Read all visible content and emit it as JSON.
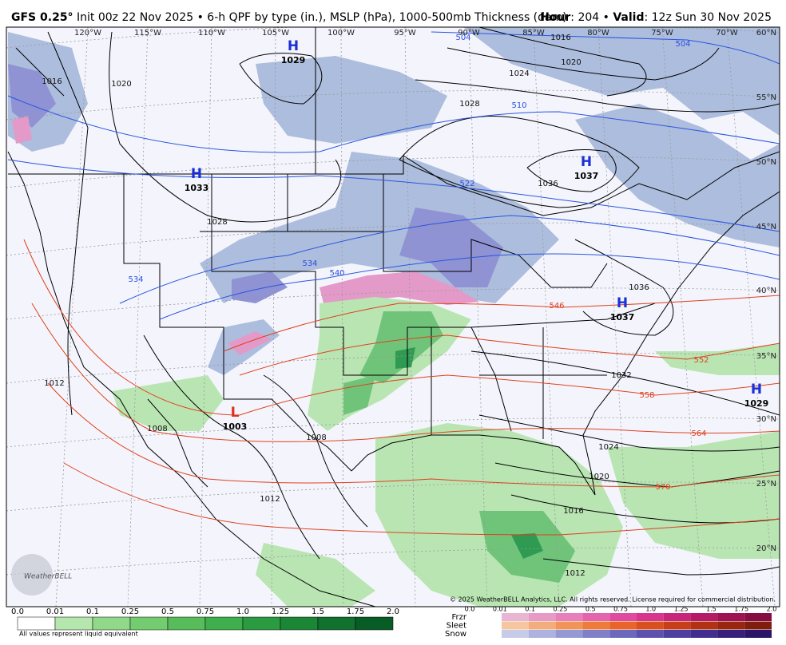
{
  "header": {
    "model": "GFS 0.25°",
    "title": " Init 00z 22 Nov 2025 • 6-h QPF by type (in.), MSLP (hPa), 1000-500mb Thickness (dam)",
    "hour_label": "Hour",
    "hour_value": ": 204 • ",
    "valid_label": "Valid",
    "valid_value": ": 12z Sun 30 Nov 2025"
  },
  "longitudes": [
    "120°W",
    "115°W",
    "110°W",
    "105°W",
    "100°W",
    "95°W",
    "90°W",
    "85°W",
    "80°W",
    "75°W",
    "70°W"
  ],
  "latitudes": [
    "60°N",
    "55°N",
    "50°N",
    "45°N",
    "40°N",
    "35°N",
    "30°N",
    "25°N",
    "20°N"
  ],
  "pressure_centers": [
    {
      "type": "H",
      "value": "1029"
    },
    {
      "type": "H",
      "value": "1033"
    },
    {
      "type": "H",
      "value": "1037"
    },
    {
      "type": "H",
      "value": "1037"
    },
    {
      "type": "H",
      "value": "1029"
    },
    {
      "type": "L",
      "value": "1003"
    }
  ],
  "isobar_labels": [
    "1016",
    "1020",
    "1024",
    "1028",
    "1036",
    "1032",
    "1028",
    "1020",
    "1016",
    "1012",
    "1008",
    "1008",
    "1024",
    "1020",
    "1016",
    "1012",
    "1036",
    "1012"
  ],
  "thickness_labels_cold": [
    "504",
    "504",
    "510",
    "522",
    "534",
    "540",
    "534"
  ],
  "thickness_labels_warm": [
    "546",
    "552",
    "558",
    "564",
    "570"
  ],
  "legend": {
    "qpf_levels": [
      "0.0",
      "0.01",
      "0.1",
      "0.25",
      "0.5",
      "0.75",
      "1.0",
      "1.25",
      "1.5",
      "1.75",
      "2.0"
    ],
    "note": "All values represent liquid equivalent",
    "ptypes": [
      "Frzr",
      "Sleet",
      "Snow"
    ],
    "ptype_levels": [
      "0.0",
      "0.01",
      "0.1",
      "0.25",
      "0.5",
      "0.75",
      "1.0",
      "1.25",
      "1.5",
      "1.75",
      "2.0"
    ]
  },
  "logo": "WeatherBELL",
  "copyright": "© 2025 WeatherBELL Analytics, LLC. All rights reserved. License required for commercial distribution."
}
